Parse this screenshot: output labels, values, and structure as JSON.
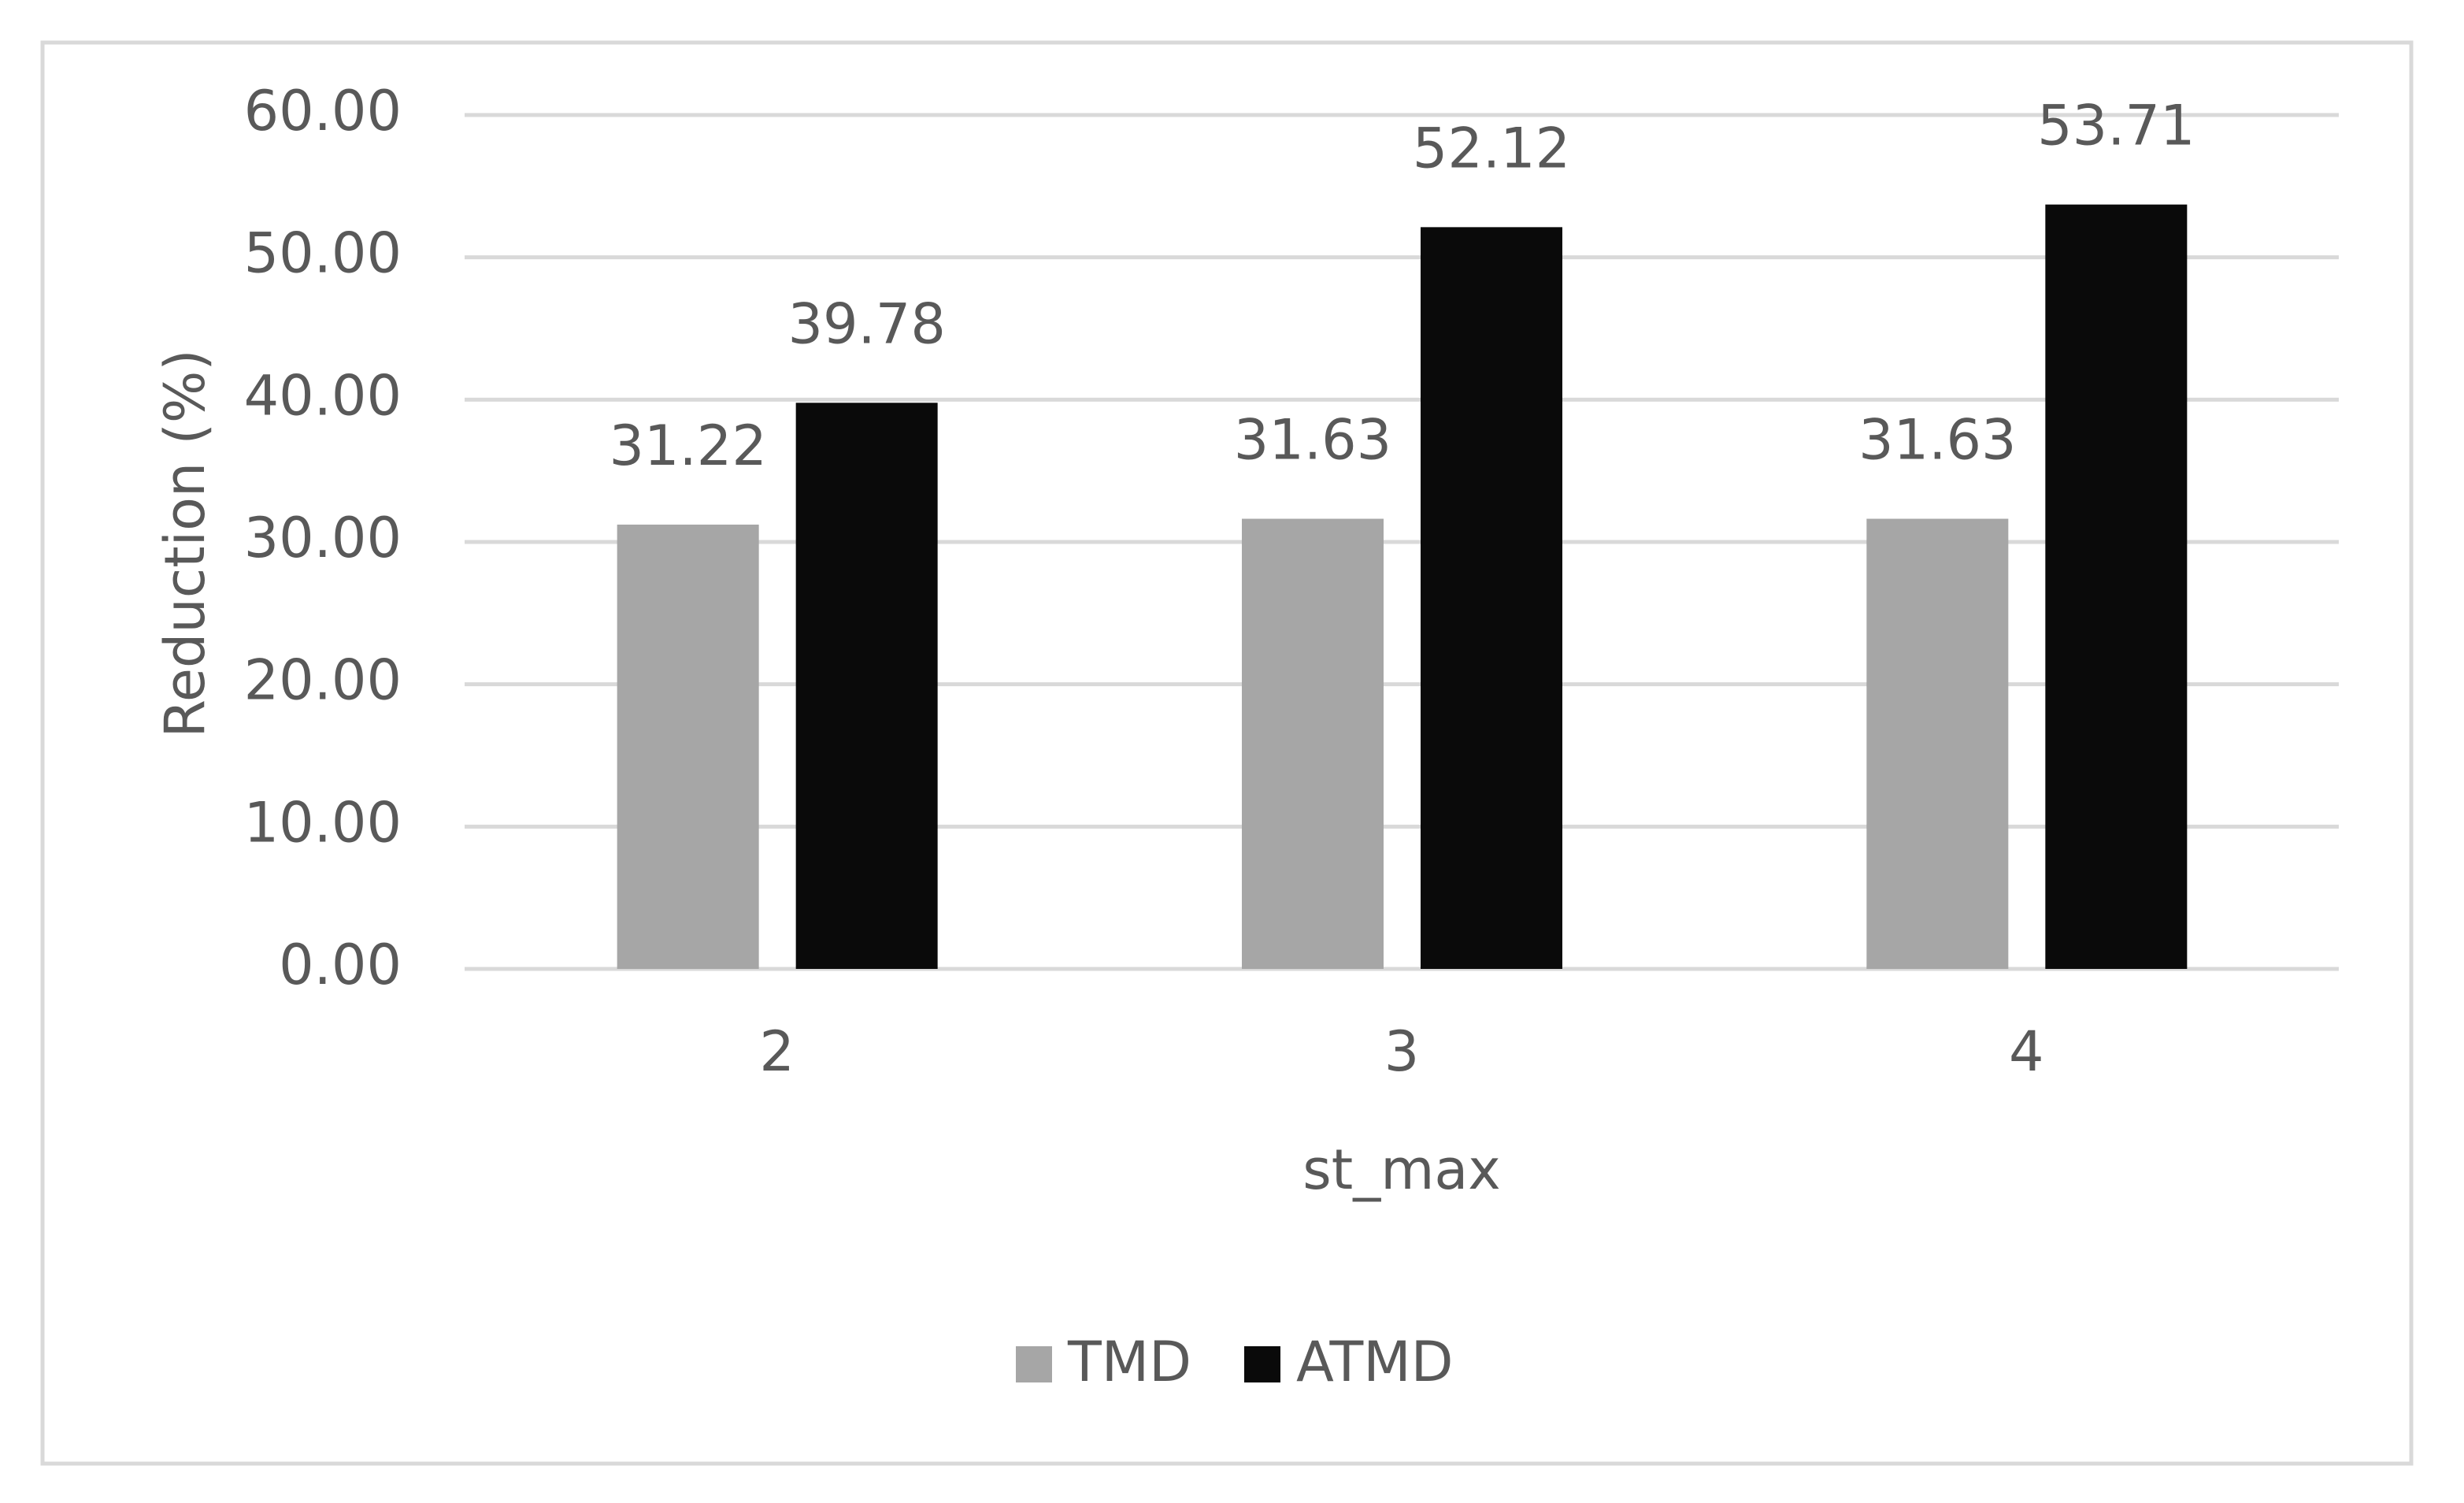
{
  "chart_data": {
    "type": "bar",
    "x_label": "st_max",
    "y_label": "Reduction (%)",
    "categories": [
      "2",
      "3",
      "4"
    ],
    "series": [
      {
        "name": "TMD",
        "color": "#a6a6a6",
        "values": [
          31.22,
          31.63,
          31.63
        ]
      },
      {
        "name": "ATMD",
        "color": "#0a0a0a",
        "values": [
          39.78,
          52.12,
          53.71
        ]
      }
    ],
    "ylim": [
      0,
      60
    ],
    "yticks": [
      {
        "value": 0,
        "label": "0.00"
      },
      {
        "value": 10,
        "label": "10.00"
      },
      {
        "value": 20,
        "label": "20.00"
      },
      {
        "value": 30,
        "label": "30.00"
      },
      {
        "value": 40,
        "label": "40.00"
      },
      {
        "value": 50,
        "label": "50.00"
      },
      {
        "value": 60,
        "label": "60.00"
      }
    ],
    "grid": true,
    "legend": "bottom"
  }
}
